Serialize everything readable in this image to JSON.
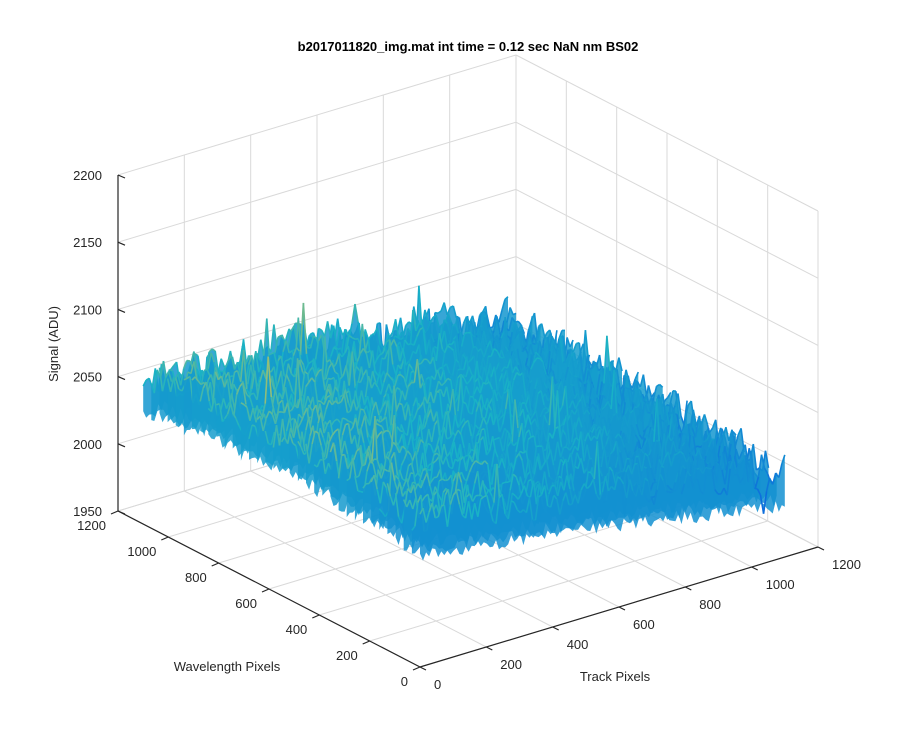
{
  "chart_data": {
    "type": "surface",
    "title": "b2017011820_img.mat int time = 0.12 sec  NaN nm BS02",
    "xlabel": "Track Pixels",
    "ylabel": "Wavelength Pixels",
    "zlabel": "Signal (ADU)",
    "xlim": [
      0,
      1200
    ],
    "ylim": [
      0,
      1200
    ],
    "zlim": [
      1950,
      2200
    ],
    "xticks": [
      "0",
      "200",
      "400",
      "600",
      "800",
      "1000",
      "1200"
    ],
    "yticks": [
      "0",
      "200",
      "400",
      "600",
      "800",
      "1000",
      "1200"
    ],
    "zticks": [
      "1950",
      "2000",
      "2050",
      "2100",
      "2150",
      "2200"
    ],
    "grid": true,
    "colormap": "parula",
    "surface_extent": {
      "x": [
        0,
        1100
      ],
      "y": [
        0,
        1100
      ]
    },
    "surface_signal_range": [
      1985,
      2145
    ],
    "surface_mean_trend": [
      {
        "track": 0,
        "wavelength_mean": [
          2060,
          2065,
          2068,
          2065,
          2060
        ]
      },
      {
        "track": 550,
        "wavelength_mean": [
          2040,
          2045,
          2050,
          2055,
          2050
        ]
      },
      {
        "track": 1100,
        "wavelength_mean": [
          2015,
          2018,
          2022,
          2025,
          2020
        ]
      }
    ],
    "colors": {
      "low": "#0d6ddc",
      "mid": "#19b2c6",
      "high": "#d8c44a"
    }
  }
}
